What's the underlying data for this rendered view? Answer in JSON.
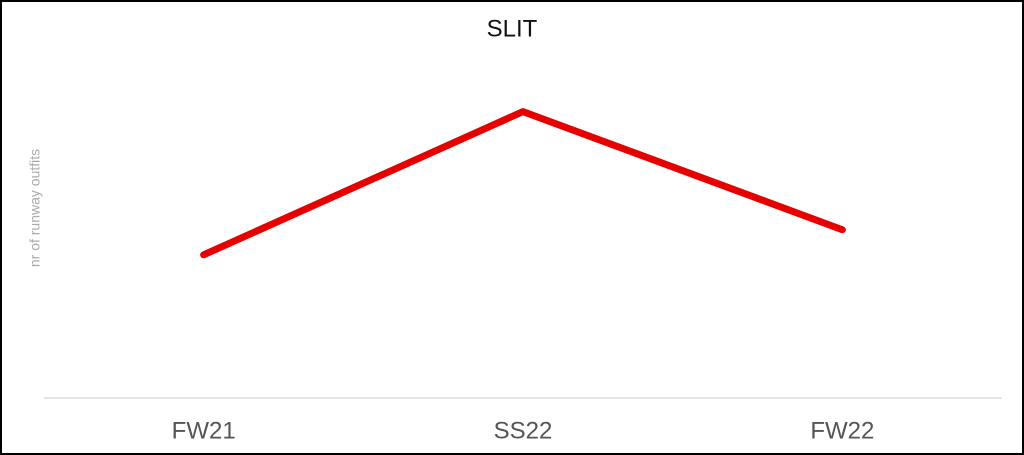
{
  "chart_data": {
    "type": "line",
    "title": "SLIT",
    "y_label": "nr of runway outfits",
    "categories": [
      "FW21",
      "SS22",
      "FW22"
    ],
    "values": [
      40,
      80,
      47
    ],
    "color": "#e60000",
    "ylim": [
      0,
      100
    ]
  }
}
